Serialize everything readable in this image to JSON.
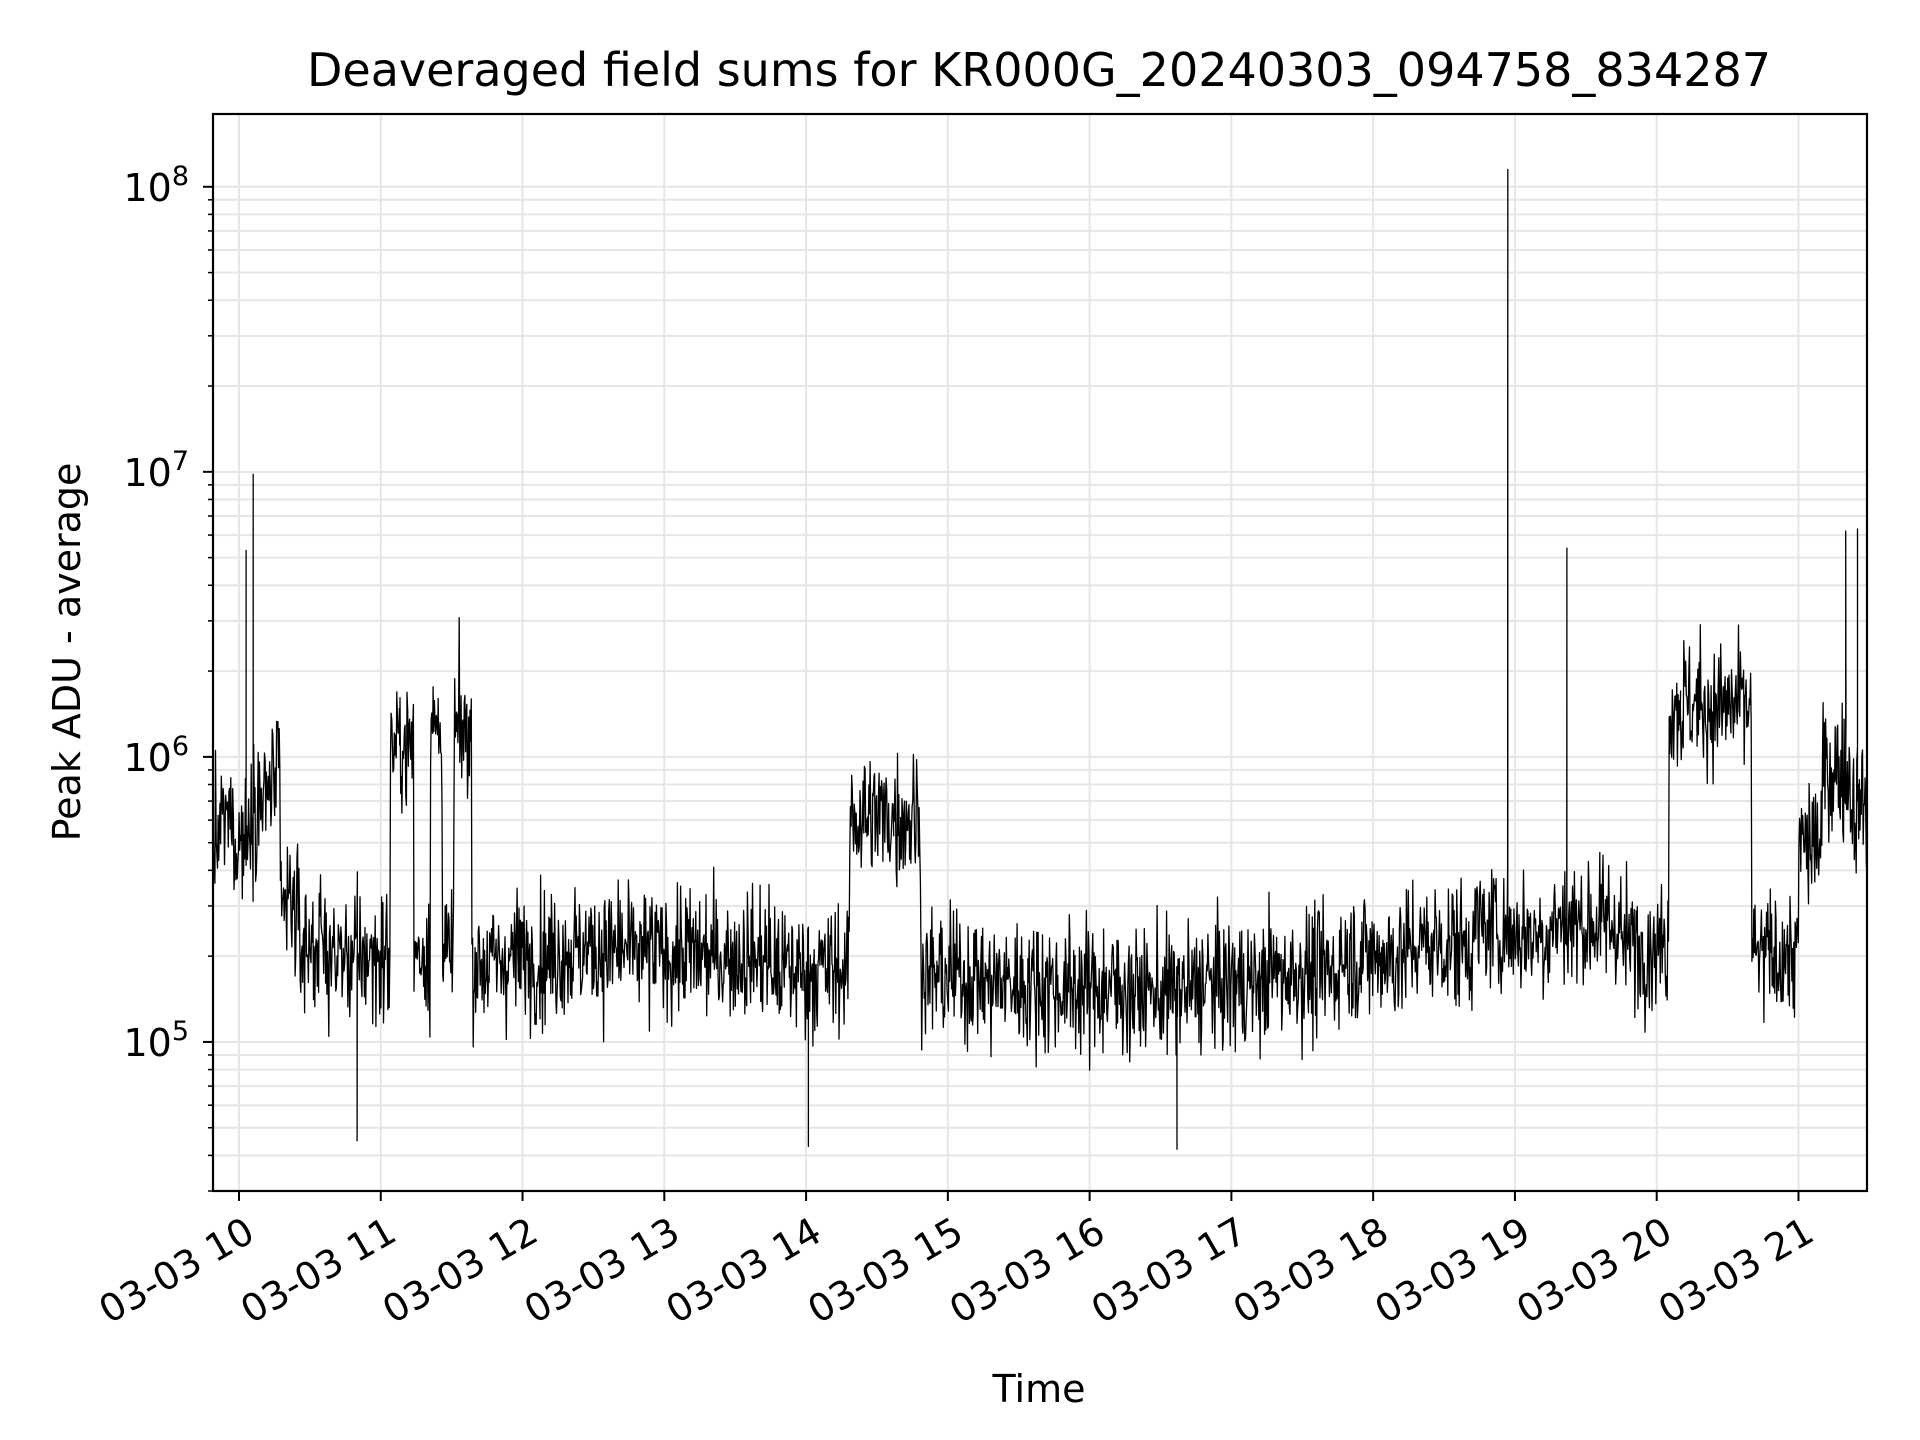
{
  "chart_data": {
    "type": "line",
    "title": "Deaveraged field sums for KR000G_20240303_094758_834287",
    "xlabel": "Time",
    "ylabel": "Peak ADU - average",
    "yscale": "log",
    "xlim": [
      "2024-03-03 09:49",
      "2024-03-03 21:29"
    ],
    "ylim": [
      30000,
      180000000
    ],
    "grid": true,
    "x_tick_labels": [
      "03-03 10",
      "03-03 11",
      "03-03 12",
      "03-03 13",
      "03-03 14",
      "03-03 15",
      "03-03 16",
      "03-03 17",
      "03-03 18",
      "03-03 19",
      "03-03 20",
      "03-03 21"
    ],
    "x_tick_hours": [
      10,
      11,
      12,
      13,
      14,
      15,
      16,
      17,
      18,
      19,
      20,
      21
    ],
    "y_ticks": [
      {
        "value": 100000,
        "base": "10",
        "exp": "5"
      },
      {
        "value": 1000000,
        "base": "10",
        "exp": "6"
      },
      {
        "value": 10000000,
        "base": "10",
        "exp": "7"
      },
      {
        "value": 100000000,
        "base": "10",
        "exp": "8"
      }
    ],
    "series": [
      {
        "color": "#000000",
        "points": [
          [
            "2024-03-03 09:49",
            500000
          ],
          [
            "2024-03-03 09:55",
            600000
          ],
          [
            "2024-03-03 10:00",
            520000
          ],
          [
            "2024-03-03 10:03",
            5300000
          ],
          [
            "2024-03-03 10:06",
            9800000
          ],
          [
            "2024-03-03 10:09",
            700000
          ],
          [
            "2024-03-03 10:15",
            800000
          ],
          [
            "2024-03-03 10:20",
            300000
          ],
          [
            "2024-03-03 10:30",
            220000
          ],
          [
            "2024-03-03 10:45",
            200000
          ],
          [
            "2024-03-03 10:50",
            45000
          ],
          [
            "2024-03-03 11:00",
            200000
          ],
          [
            "2024-03-03 11:08",
            1100000
          ],
          [
            "2024-03-03 11:20",
            210000
          ],
          [
            "2024-03-03 11:22",
            1250000
          ],
          [
            "2024-03-03 11:30",
            200000
          ],
          [
            "2024-03-03 11:32",
            1230000
          ],
          [
            "2024-03-03 11:45",
            190000
          ],
          [
            "2024-03-03 12:00",
            200000
          ],
          [
            "2024-03-03 12:30",
            210000
          ],
          [
            "2024-03-03 13:00",
            205000
          ],
          [
            "2024-03-03 13:30",
            200000
          ],
          [
            "2024-03-03 14:00",
            180000
          ],
          [
            "2024-03-03 14:01",
            43000
          ],
          [
            "2024-03-03 14:37",
            620000
          ],
          [
            "2024-03-03 15:00",
            170000
          ],
          [
            "2024-03-03 15:30",
            160000
          ],
          [
            "2024-03-03 16:00",
            155000
          ],
          [
            "2024-03-03 16:30",
            150000
          ],
          [
            "2024-03-03 16:37",
            42000
          ],
          [
            "2024-03-03 17:00",
            160000
          ],
          [
            "2024-03-03 17:30",
            175000
          ],
          [
            "2024-03-03 18:00",
            200000
          ],
          [
            "2024-03-03 18:30",
            220000
          ],
          [
            "2024-03-03 18:55",
            250000
          ],
          [
            "2024-03-03 18:57",
            115000000
          ],
          [
            "2024-03-03 19:00",
            240000
          ],
          [
            "2024-03-03 19:22",
            5400000
          ],
          [
            "2024-03-03 19:30",
            260000
          ],
          [
            "2024-03-03 20:00",
            220000
          ],
          [
            "2024-03-03 20:10",
            1550000
          ],
          [
            "2024-03-03 20:25",
            1500000
          ],
          [
            "2024-03-03 20:55",
            200000
          ],
          [
            "2024-03-03 21:05",
            500000
          ],
          [
            "2024-03-03 21:15",
            900000
          ],
          [
            "2024-03-03 21:20",
            6200000
          ],
          [
            "2024-03-03 21:25",
            6300000
          ],
          [
            "2024-03-03 21:29",
            700000
          ]
        ]
      }
    ]
  }
}
